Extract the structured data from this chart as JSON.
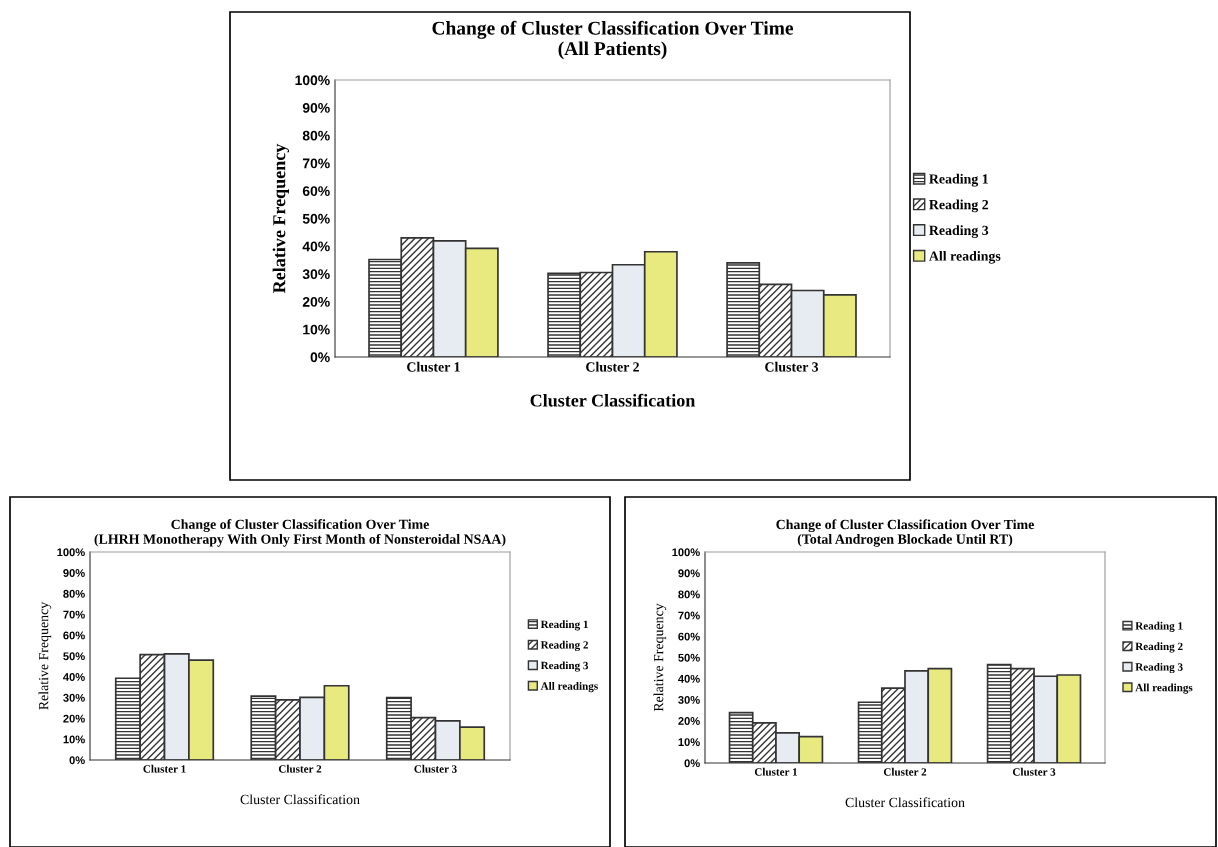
{
  "chart_data": [
    {
      "type": "bar",
      "title": "Change of Cluster Classification Over Time\n(All Patients)",
      "xlabel": "Cluster Classification",
      "ylabel": "Relative Frequency",
      "categories": [
        "Cluster 1",
        "Cluster 2",
        "Cluster 3"
      ],
      "series": [
        {
          "name": "Reading 1",
          "color": "#333333",
          "values": [
            35.2,
            30.2,
            34
          ]
        },
        {
          "name": "Reading 2",
          "color": "#333333",
          "values": [
            43,
            30.5,
            26.2
          ]
        },
        {
          "name": "Reading 3",
          "color": "#e6ecf2",
          "values": [
            41.9,
            33.3,
            24
          ]
        },
        {
          "name": "All readings",
          "color": "#e8ea80",
          "values": [
            39.2,
            38,
            22.4
          ]
        }
      ],
      "ylim": [
        0,
        100
      ],
      "yticks": [
        {
          "value": 0,
          "label": "0%"
        },
        {
          "value": 10,
          "label": "10%"
        },
        {
          "value": 20,
          "label": "20%"
        },
        {
          "value": 30,
          "label": "30%"
        },
        {
          "value": 40,
          "label": "40%"
        },
        {
          "value": 50,
          "label": "50%"
        },
        {
          "value": 60,
          "label": "60%"
        },
        {
          "value": 70,
          "label": "70%"
        },
        {
          "value": 80,
          "label": "80%"
        },
        {
          "value": 90,
          "label": "90%"
        },
        {
          "value": 100,
          "label": "100%"
        }
      ],
      "grid": false,
      "legend": "right"
    },
    {
      "type": "bar",
      "title": "Change of Cluster Classification Over Time\n(LHRH Monotherapy With Only First Month of Nonsteroidal NSAA)",
      "xlabel": "Cluster Classification",
      "ylabel": "Relative Frequency",
      "categories": [
        "Cluster 1",
        "Cluster 2",
        "Cluster 3"
      ],
      "series": [
        {
          "name": "Reading 1",
          "color": "#333333",
          "values": [
            39.3,
            30.7,
            30
          ]
        },
        {
          "name": "Reading 2",
          "color": "#333333",
          "values": [
            50.7,
            28.9,
            20.4
          ]
        },
        {
          "name": "Reading 3",
          "color": "#e6ecf2",
          "values": [
            51,
            30.1,
            18.8
          ]
        },
        {
          "name": "All readings",
          "color": "#e8ea80",
          "values": [
            48,
            35.7,
            15.8
          ]
        }
      ],
      "ylim": [
        0,
        100
      ],
      "yticks": [
        {
          "value": 0,
          "label": "0%"
        },
        {
          "value": 10,
          "label": "10%"
        },
        {
          "value": 20,
          "label": "20%"
        },
        {
          "value": 30,
          "label": "30%"
        },
        {
          "value": 40,
          "label": "40%"
        },
        {
          "value": 50,
          "label": "50%"
        },
        {
          "value": 60,
          "label": "60%"
        },
        {
          "value": 70,
          "label": "70%"
        },
        {
          "value": 80,
          "label": "80%"
        },
        {
          "value": 90,
          "label": "90%"
        },
        {
          "value": 100,
          "label": "100%"
        }
      ],
      "grid": false,
      "legend": "right"
    },
    {
      "type": "bar",
      "title": "Change of Cluster Classification Over Time\n(Total Androgen Blockade Until RT)",
      "xlabel": "Cluster Classification",
      "ylabel": "Relative Frequency",
      "categories": [
        "Cluster 1",
        "Cluster 2",
        "Cluster 3"
      ],
      "series": [
        {
          "name": "Reading 1",
          "color": "#333333",
          "values": [
            23.9,
            28.8,
            46.7
          ]
        },
        {
          "name": "Reading 2",
          "color": "#333333",
          "values": [
            19,
            35.5,
            44.7
          ]
        },
        {
          "name": "Reading 3",
          "color": "#e6ecf2",
          "values": [
            14.3,
            43.7,
            41.1
          ]
        },
        {
          "name": "All readings",
          "color": "#e8ea80",
          "values": [
            12.5,
            44.7,
            41.7
          ]
        }
      ],
      "ylim": [
        0,
        100
      ],
      "yticks": [
        {
          "value": 0,
          "label": "0%"
        },
        {
          "value": 10,
          "label": "10%"
        },
        {
          "value": 20,
          "label": "20%"
        },
        {
          "value": 30,
          "label": "30%"
        },
        {
          "value": 40,
          "label": "40%"
        },
        {
          "value": 50,
          "label": "50%"
        },
        {
          "value": 60,
          "label": "60%"
        },
        {
          "value": 70,
          "label": "70%"
        },
        {
          "value": 80,
          "label": "80%"
        },
        {
          "value": 90,
          "label": "90%"
        },
        {
          "value": 100,
          "label": "100%"
        }
      ],
      "grid": false,
      "legend": "right"
    }
  ]
}
